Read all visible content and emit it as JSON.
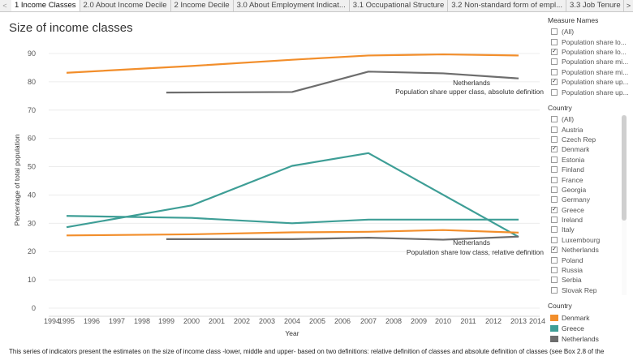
{
  "tabs": {
    "left_arrow": "<",
    "right_arrow": ">",
    "items": [
      {
        "label": "1 Income Classes"
      },
      {
        "label": "2.0 About Income Decile"
      },
      {
        "label": "2 Income Decile"
      },
      {
        "label": "3.0 About Employment Indicat..."
      },
      {
        "label": "3.1 Occupational Structure"
      },
      {
        "label": "3.2 Non-standard form of empl..."
      },
      {
        "label": "3.3 Job Tenure"
      }
    ]
  },
  "title": "Size of income classes",
  "chart_data": {
    "type": "line",
    "ylabel": "Percentage of total population",
    "xlabel": "Year",
    "ylim": [
      0,
      90
    ],
    "yticks": [
      "0",
      "10",
      "20",
      "30",
      "40",
      "50",
      "60",
      "70",
      "80",
      "90"
    ],
    "xticks": [
      "1994",
      "1995",
      "1996",
      "1997",
      "1998",
      "1999",
      "2000",
      "2001",
      "2002",
      "2003",
      "2004",
      "2005",
      "2006",
      "2007",
      "2008",
      "2009",
      "2010",
      "2011",
      "2012",
      "2013",
      "2014"
    ],
    "x_tick_label_2013": "2013",
    "series": [
      {
        "name": "Denmark - Population share upper class, absolute definition",
        "color": "#f28e2b",
        "x": [
          1995,
          2000,
          2004,
          2007,
          2010,
          2013
        ],
        "values": [
          83.2,
          85.6,
          87.8,
          89.3,
          89.7,
          89.3
        ]
      },
      {
        "name": "Netherlands - Population share upper class, absolute definition",
        "color": "#6d6d6d",
        "x": [
          1999,
          2004,
          2007,
          2010,
          2013
        ],
        "values": [
          76.2,
          76.4,
          83.6,
          83.0,
          81.2
        ]
      },
      {
        "name": "Greece - Population share upper class, absolute definition",
        "color": "#3e9e96",
        "x": [
          1995,
          2000,
          2004,
          2007,
          2013
        ],
        "values": [
          28.6,
          36.3,
          50.3,
          54.8,
          25.2
        ]
      },
      {
        "name": "Greece - Population share low class, relative definition",
        "color": "#3e9e96",
        "x": [
          1995,
          2000,
          2004,
          2007,
          2010,
          2013
        ],
        "values": [
          32.6,
          31.9,
          30.0,
          31.3,
          31.3,
          31.3
        ]
      },
      {
        "name": "Denmark - Population share low class, relative definition",
        "color": "#f28e2b",
        "x": [
          1995,
          2000,
          2004,
          2007,
          2010,
          2013
        ],
        "values": [
          25.7,
          26.1,
          26.8,
          27.0,
          27.6,
          26.7
        ]
      },
      {
        "name": "Netherlands - Population share low class, relative definition",
        "color": "#6d6d6d",
        "x": [
          1999,
          2004,
          2007,
          2010,
          2013
        ],
        "values": [
          24.4,
          24.4,
          24.9,
          24.2,
          25.3
        ]
      }
    ],
    "annotations": [
      {
        "line1": "Netherlands",
        "line2": "Population share upper class, absolute definition"
      },
      {
        "line1": "Netherlands",
        "line2": "Population share low class, relative definition"
      }
    ]
  },
  "filters": {
    "measure": {
      "title": "Measure Names",
      "items": [
        {
          "label": "(All)",
          "checked": false
        },
        {
          "label": "Population share lo...",
          "checked": false
        },
        {
          "label": "Population share lo...",
          "checked": true
        },
        {
          "label": "Population share mi...",
          "checked": false
        },
        {
          "label": "Population share mi...",
          "checked": false
        },
        {
          "label": "Population share up...",
          "checked": true
        },
        {
          "label": "Population share up...",
          "checked": false
        }
      ]
    },
    "country": {
      "title": "Country",
      "items": [
        {
          "label": "(All)",
          "checked": false
        },
        {
          "label": "Austria",
          "checked": false
        },
        {
          "label": "Czech Rep",
          "checked": false
        },
        {
          "label": "Denmark",
          "checked": true
        },
        {
          "label": "Estonia",
          "checked": false
        },
        {
          "label": "Finland",
          "checked": false
        },
        {
          "label": "France",
          "checked": false
        },
        {
          "label": "Georgia",
          "checked": false
        },
        {
          "label": "Germany",
          "checked": false
        },
        {
          "label": "Greece",
          "checked": true
        },
        {
          "label": "Ireland",
          "checked": false
        },
        {
          "label": "Italy",
          "checked": false
        },
        {
          "label": "Luxembourg",
          "checked": false
        },
        {
          "label": "Netherlands",
          "checked": true
        },
        {
          "label": "Poland",
          "checked": false
        },
        {
          "label": "Russia",
          "checked": false
        },
        {
          "label": "Serbia",
          "checked": false
        },
        {
          "label": "Slovak Rep",
          "checked": false
        }
      ]
    },
    "check_mark": "✓"
  },
  "legend": {
    "title": "Country",
    "items": [
      {
        "label": "Denmark",
        "color": "#f28e2b"
      },
      {
        "label": "Greece",
        "color": "#3e9e96"
      },
      {
        "label": "Netherlands",
        "color": "#6d6d6d"
      }
    ]
  },
  "footer": "This series of indicators present the estimates on the size of income class -lower, middle and upper- based on two definitions: relative definition of classes and absolute definition of classes (see Box 2.8 of the"
}
